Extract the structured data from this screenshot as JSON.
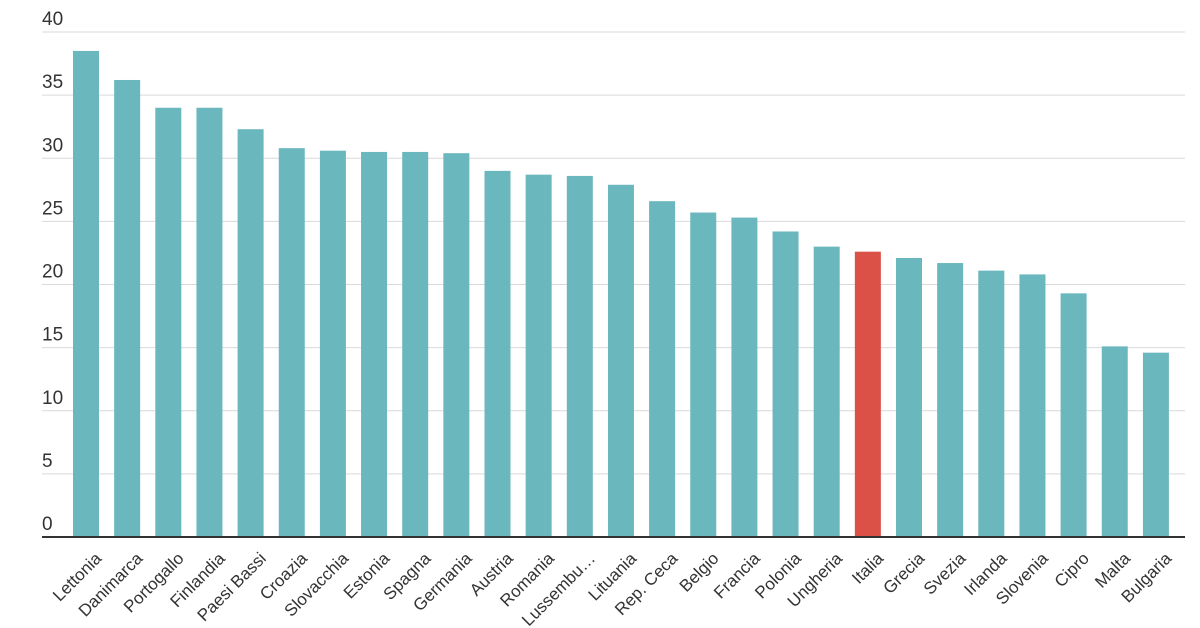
{
  "chart_data": {
    "type": "bar",
    "categories": [
      "Lettonia",
      "Danimarca",
      "Portogallo",
      "Finlandia",
      "Paesi Bassi",
      "Croazia",
      "Slovacchia",
      "Estonia",
      "Spagna",
      "Germania",
      "Austria",
      "Romania",
      "Lussembu…",
      "Lituania",
      "Rep. Ceca",
      "Belgio",
      "Francia",
      "Polonia",
      "Ungheria",
      "Italia",
      "Grecia",
      "Svezia",
      "Irlanda",
      "Slovenia",
      "Cipro",
      "Malta",
      "Bulgaria"
    ],
    "values": [
      38.5,
      36.2,
      34.0,
      34.0,
      32.3,
      30.8,
      30.6,
      30.5,
      30.5,
      30.4,
      29.0,
      28.7,
      28.6,
      27.9,
      26.6,
      25.7,
      25.3,
      24.2,
      23.0,
      22.6,
      22.1,
      21.7,
      21.1,
      20.8,
      19.3,
      15.1,
      14.6
    ],
    "highlight_category": "Italia",
    "ylim": [
      0,
      40
    ],
    "yticks": [
      0,
      5,
      10,
      15,
      20,
      25,
      30,
      35,
      40
    ],
    "grid": true,
    "title": "",
    "xlabel": "",
    "ylabel": "",
    "colors": {
      "bar": "#6bb7be",
      "highlight": "#db5147",
      "grid": "#d9d9d9",
      "axis": "#333333"
    }
  }
}
